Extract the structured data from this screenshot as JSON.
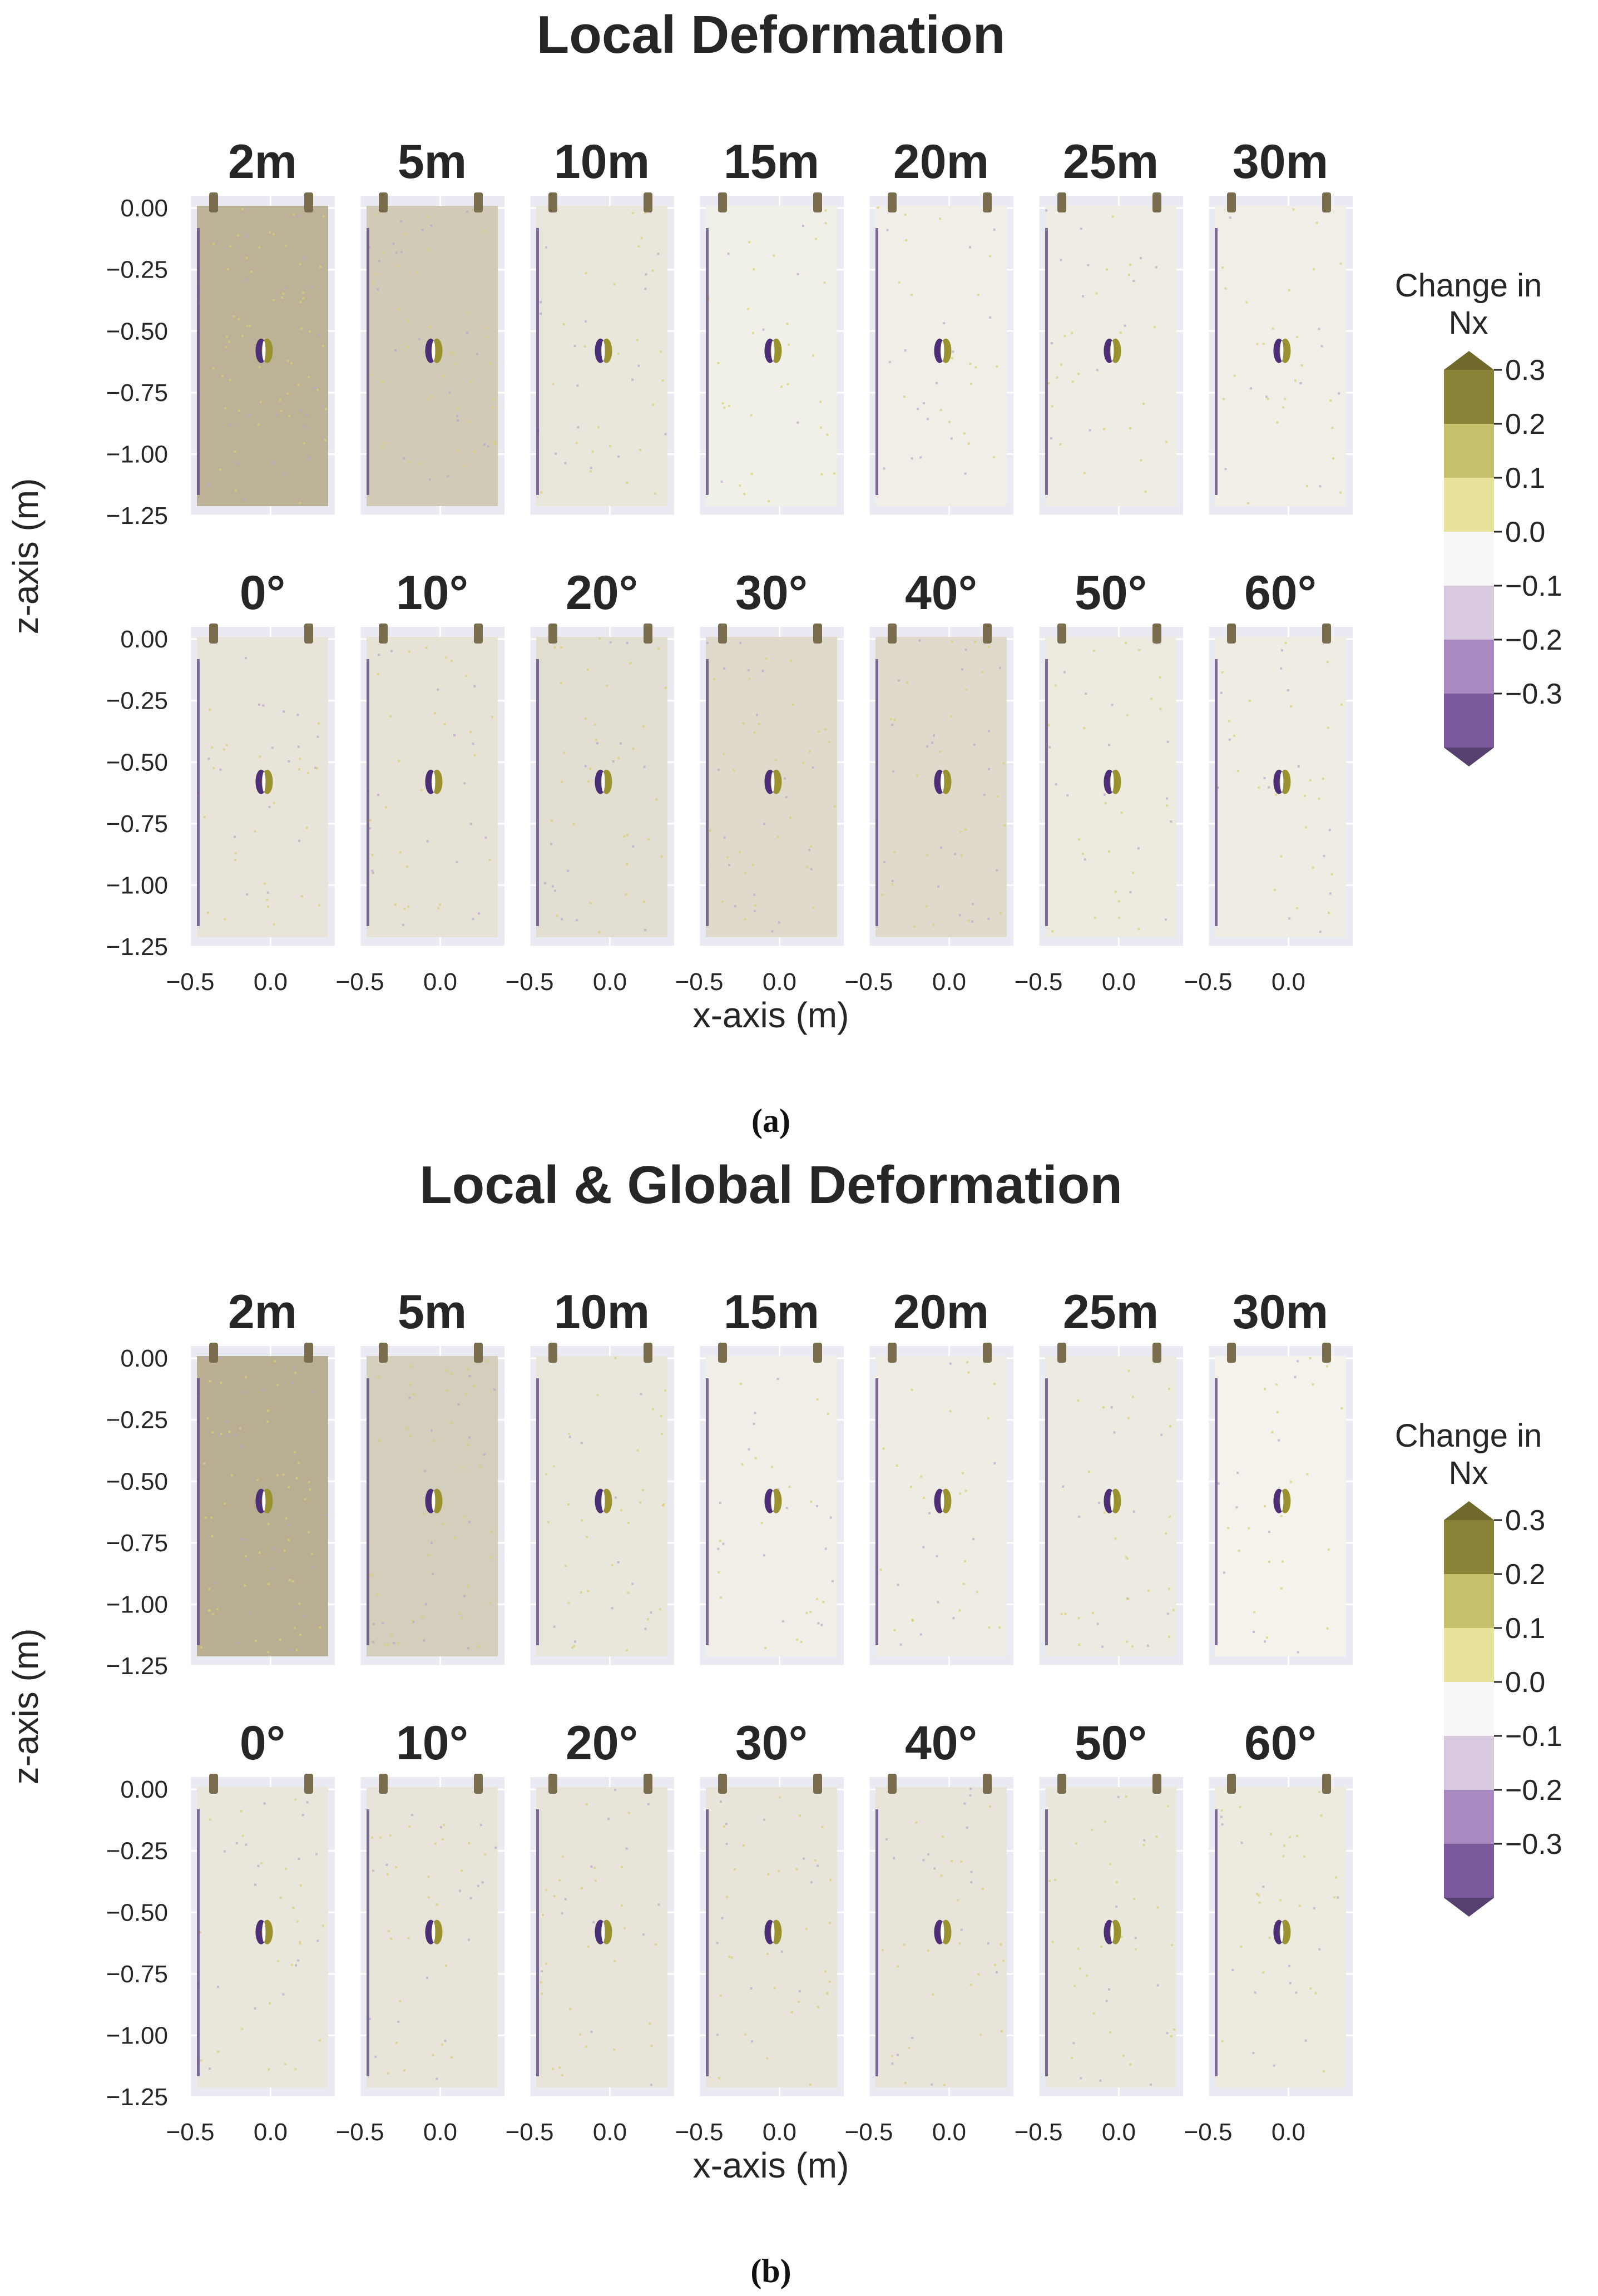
{
  "chart_data": [
    {
      "type": "heatmap",
      "title": "Local Deformation",
      "caption": "(a)",
      "xlabel": "x-axis (m)",
      "ylabel": "z-axis (m)",
      "xlim": [
        -0.5,
        0.4
      ],
      "ylim": [
        -1.25,
        0.05
      ],
      "xticks": [
        "−0.5",
        "0.0"
      ],
      "yticks": [
        "0.00",
        "−0.25",
        "−0.50",
        "−0.75",
        "−1.00",
        "−1.25"
      ],
      "grid": true,
      "rows": [
        {
          "panels": [
            {
              "label": "2m",
              "intensity": 0.85
            },
            {
              "label": "5m",
              "intensity": 0.55
            },
            {
              "label": "10m",
              "intensity": 0.2
            },
            {
              "label": "15m",
              "intensity": 0.08
            },
            {
              "label": "20m",
              "intensity": 0.1
            },
            {
              "label": "25m",
              "intensity": 0.12
            },
            {
              "label": "30m",
              "intensity": 0.1
            }
          ]
        },
        {
          "panels": [
            {
              "label": "0°",
              "intensity": 0.22
            },
            {
              "label": "10°",
              "intensity": 0.25
            },
            {
              "label": "20°",
              "intensity": 0.3
            },
            {
              "label": "30°",
              "intensity": 0.35
            },
            {
              "label": "40°",
              "intensity": 0.35
            },
            {
              "label": "50°",
              "intensity": 0.15
            },
            {
              "label": "60°",
              "intensity": 0.12
            }
          ]
        }
      ],
      "colorbar": {
        "title_line1": "Change in",
        "title_line2": "Nx",
        "ticks": [
          "0.3",
          "0.2",
          "0.1",
          "0.0",
          "−0.1",
          "−0.2",
          "−0.3"
        ],
        "bands": [
          "#8a8236",
          "#c6c16d",
          "#e8e39b",
          "#f7f7f7",
          "#d9c9de",
          "#a98ac0",
          "#7a5a9c"
        ],
        "extend_top": "#6f6a2c",
        "extend_bottom": "#56406f"
      }
    },
    {
      "type": "heatmap",
      "title": "Local & Global Deformation",
      "caption": "(b)",
      "xlabel": "x-axis (m)",
      "ylabel": "z-axis (m)",
      "xlim": [
        -0.5,
        0.4
      ],
      "ylim": [
        -1.25,
        0.05
      ],
      "xticks": [
        "−0.5",
        "0.0"
      ],
      "yticks": [
        "0.00",
        "−0.25",
        "−0.50",
        "−0.75",
        "−1.00",
        "−1.25"
      ],
      "grid": true,
      "rows": [
        {
          "panels": [
            {
              "label": "2m",
              "intensity": 0.9
            },
            {
              "label": "5m",
              "intensity": 0.5
            },
            {
              "label": "10m",
              "intensity": 0.2
            },
            {
              "label": "15m",
              "intensity": 0.1
            },
            {
              "label": "20m",
              "intensity": 0.12
            },
            {
              "label": "25m",
              "intensity": 0.14
            },
            {
              "label": "30m",
              "intensity": 0.05
            }
          ]
        },
        {
          "panels": [
            {
              "label": "0°",
              "intensity": 0.2
            },
            {
              "label": "10°",
              "intensity": 0.22
            },
            {
              "label": "20°",
              "intensity": 0.22
            },
            {
              "label": "30°",
              "intensity": 0.22
            },
            {
              "label": "40°",
              "intensity": 0.22
            },
            {
              "label": "50°",
              "intensity": 0.18
            },
            {
              "label": "60°",
              "intensity": 0.15
            }
          ]
        }
      ],
      "colorbar": {
        "title_line1": "Change in",
        "title_line2": "Nx",
        "ticks": [
          "0.3",
          "0.2",
          "0.1",
          "0.0",
          "−0.1",
          "−0.2",
          "−0.3"
        ],
        "bands": [
          "#8a8236",
          "#c6c16d",
          "#e8e39b",
          "#f7f7f7",
          "#d9c9de",
          "#a98ac0",
          "#7a5a9c"
        ],
        "extend_top": "#6f6a2c",
        "extend_bottom": "#56406f"
      }
    }
  ]
}
